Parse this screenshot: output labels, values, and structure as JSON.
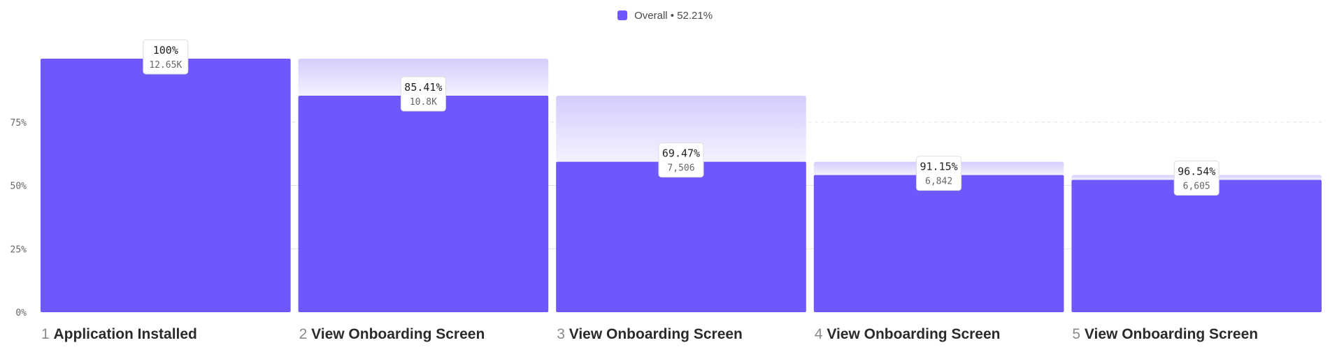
{
  "legend": {
    "label": "Overall • 52.21%",
    "color": "#6e57fb"
  },
  "chart_data": {
    "type": "bar",
    "title": "",
    "ylim": [
      0,
      100
    ],
    "yticks": [
      "0%",
      "25%",
      "50%",
      "75%"
    ],
    "grid": true,
    "legend_position": "top-center",
    "colors": {
      "bar": "#6e57fb",
      "dropoff_top": "#d4cdfd",
      "dropoff_bottom": "#f4f2ff",
      "grid": "#e3e3e3"
    },
    "steps": [
      {
        "num": "1",
        "name": "Application Installed",
        "overall": 100,
        "previous": 100,
        "conversion": "100%",
        "count": "12.65K"
      },
      {
        "num": "2",
        "name": "View Onboarding Screen",
        "overall": 85.41,
        "previous": 100,
        "conversion": "85.41%",
        "count": "10.8K"
      },
      {
        "num": "3",
        "name": "View Onboarding Screen",
        "overall": 59.34,
        "previous": 85.41,
        "conversion": "69.47%",
        "count": "7,506"
      },
      {
        "num": "4",
        "name": "View Onboarding Screen",
        "overall": 54.09,
        "previous": 59.34,
        "conversion": "91.15%",
        "count": "6,842"
      },
      {
        "num": "5",
        "name": "View Onboarding Screen",
        "overall": 52.21,
        "previous": 54.09,
        "conversion": "96.54%",
        "count": "6,605"
      }
    ]
  }
}
